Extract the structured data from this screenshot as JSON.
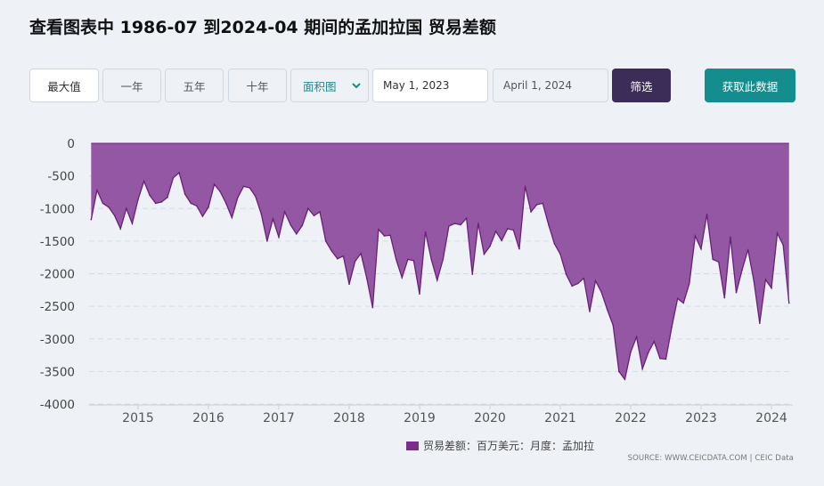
{
  "header": {
    "title": "查看图表中 1986-07 到2024-04 期间的孟加拉国 贸易差额"
  },
  "toolbar": {
    "range_buttons": [
      "最大值",
      "一年",
      "五年",
      "十年"
    ],
    "chart_type": "面积图",
    "start_date": "May 1, 2023",
    "end_date": "April 1, 2024",
    "filter_label": "筛选",
    "get_data_label": "获取此数据"
  },
  "legend": {
    "label": "贸易差额：百万美元：月度：孟加拉"
  },
  "source": "SOURCE: WWW.CEICDATA.COM | CEIC Data",
  "colors": {
    "fill": "#8c4a9c",
    "line": "#6a1f7a",
    "accent": "#138d8d",
    "filter_button": "#3b2d57"
  },
  "chart_data": {
    "type": "area",
    "title": "",
    "xlabel": "",
    "ylabel": "",
    "ylim": [
      -4000,
      0
    ],
    "yticks": [
      0,
      -500,
      -1000,
      -1500,
      -2000,
      -2500,
      -3000,
      -3500,
      -4000
    ],
    "xticks": [
      "2015",
      "2016",
      "2017",
      "2018",
      "2019",
      "2020",
      "2021",
      "2022",
      "2023",
      "2024"
    ],
    "grid": true,
    "legend_position": "bottom",
    "series": [
      {
        "name": "贸易差额：百万美元：月度：孟加拉",
        "x_start": "2014-05",
        "frequency": "monthly",
        "values": [
          -1170,
          -720,
          -920,
          -980,
          -1110,
          -1310,
          -1000,
          -1230,
          -860,
          -580,
          -800,
          -920,
          -900,
          -830,
          -530,
          -450,
          -780,
          -920,
          -960,
          -1120,
          -980,
          -630,
          -740,
          -920,
          -1140,
          -830,
          -660,
          -680,
          -810,
          -1080,
          -1500,
          -1160,
          -1440,
          -1050,
          -1250,
          -1390,
          -1260,
          -1000,
          -1110,
          -1050,
          -1500,
          -1650,
          -1770,
          -1730,
          -2160,
          -1810,
          -1690,
          -2070,
          -2520,
          -1320,
          -1420,
          -1410,
          -1780,
          -2060,
          -1780,
          -1800,
          -2310,
          -1360,
          -1780,
          -2100,
          -1780,
          -1270,
          -1230,
          -1250,
          -1150,
          -2010,
          -1230,
          -1700,
          -1580,
          -1350,
          -1490,
          -1310,
          -1330,
          -1620,
          -660,
          -1050,
          -940,
          -920,
          -1250,
          -1540,
          -1700,
          -2010,
          -2190,
          -2150,
          -2070,
          -2580,
          -2110,
          -2280,
          -2550,
          -2790,
          -3500,
          -3620,
          -3200,
          -2970,
          -3460,
          -3210,
          -3040,
          -3300,
          -3310,
          -2820,
          -2380,
          -2450,
          -2150,
          -1420,
          -1620,
          -1090,
          -1780,
          -1820,
          -2370,
          -1440,
          -2290,
          -1940,
          -1630,
          -2110,
          -2760,
          -2090,
          -2220,
          -1380,
          -1560,
          -2450
        ]
      }
    ]
  }
}
